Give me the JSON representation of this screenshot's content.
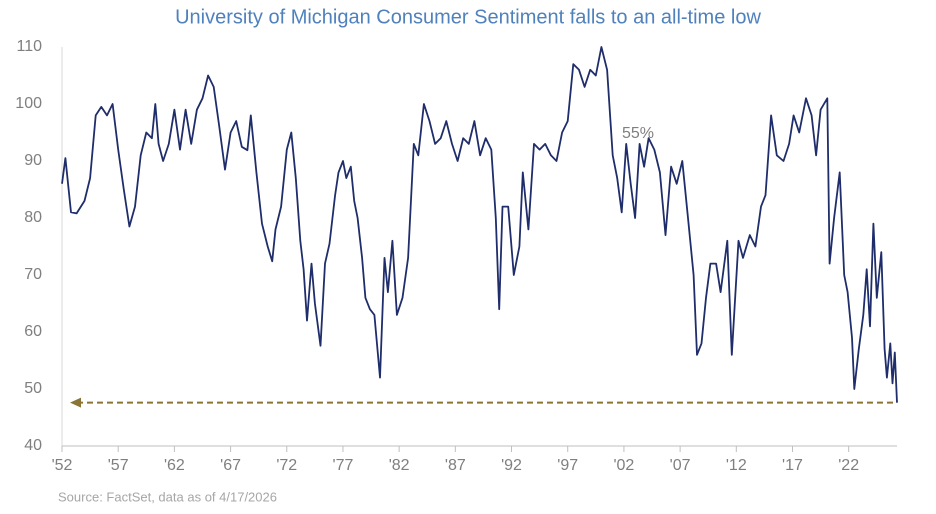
{
  "chart_data": {
    "type": "line",
    "title": "University of Michigan Consumer Sentiment falls to an all-time low",
    "source": "Source: FactSet, data as of 4/17/2026",
    "annotation": "55%",
    "color": "#1f2d6b",
    "reference_line": {
      "value": 47.6,
      "color": "#8b7535"
    },
    "xlim": [
      1952,
      2026.3
    ],
    "ylim": [
      40,
      110
    ],
    "yticks": [
      40,
      50,
      60,
      70,
      80,
      90,
      100,
      110
    ],
    "xticks": [
      {
        "value": 1952,
        "label": "'52"
      },
      {
        "value": 1957,
        "label": "'57"
      },
      {
        "value": 1962,
        "label": "'62"
      },
      {
        "value": 1967,
        "label": "'67"
      },
      {
        "value": 1972,
        "label": "'72"
      },
      {
        "value": 1977,
        "label": "'77"
      },
      {
        "value": 1982,
        "label": "'82"
      },
      {
        "value": 1987,
        "label": "'87"
      },
      {
        "value": 1992,
        "label": "'92"
      },
      {
        "value": 1997,
        "label": "'97"
      },
      {
        "value": 2002,
        "label": "'02"
      },
      {
        "value": 2007,
        "label": "'07"
      },
      {
        "value": 2012,
        "label": "'12"
      },
      {
        "value": 2017,
        "label": "'17"
      },
      {
        "value": 2022,
        "label": "'22"
      }
    ],
    "x": [
      1952,
      1952.3,
      1952.8,
      1953.3,
      1954,
      1954.5,
      1955,
      1955.5,
      1956,
      1956.5,
      1957,
      1957.5,
      1958,
      1958.5,
      1959,
      1959.5,
      1960,
      1960.3,
      1960.6,
      1961,
      1961.5,
      1962,
      1962.5,
      1963,
      1963.5,
      1964,
      1964.5,
      1965,
      1965.5,
      1966,
      1966.5,
      1967,
      1967.5,
      1968,
      1968.5,
      1968.8,
      1969.3,
      1969.8,
      1970.3,
      1970.7,
      1971,
      1971.5,
      1972,
      1972.4,
      1972.8,
      1973.2,
      1973.5,
      1973.8,
      1974.2,
      1974.5,
      1975,
      1975.4,
      1975.8,
      1976.3,
      1976.6,
      1977,
      1977.3,
      1977.7,
      1978,
      1978.3,
      1978.7,
      1979,
      1979.4,
      1979.8,
      1980.3,
      1980.7,
      1981,
      1981.4,
      1981.8,
      1982.3,
      1982.8,
      1983.3,
      1983.7,
      1984.2,
      1984.7,
      1985.2,
      1985.7,
      1986.2,
      1986.7,
      1987.2,
      1987.7,
      1988.2,
      1988.7,
      1989.2,
      1989.7,
      1990.2,
      1990.6,
      1990.9,
      1991.2,
      1991.7,
      1992.2,
      1992.7,
      1993,
      1993.5,
      1994,
      1994.5,
      1995,
      1995.5,
      1996,
      1996.5,
      1997,
      1997.5,
      1998,
      1998.5,
      1999,
      1999.5,
      2000,
      2000.5,
      2001,
      2001.4,
      2001.8,
      2002.2,
      2002.6,
      2003,
      2003.4,
      2003.8,
      2004.2,
      2004.7,
      2005.2,
      2005.7,
      2006.2,
      2006.7,
      2007.2,
      2007.7,
      2008.2,
      2008.5,
      2008.9,
      2009.3,
      2009.7,
      2010.2,
      2010.6,
      2011.2,
      2011.6,
      2012.2,
      2012.6,
      2013.2,
      2013.7,
      2014.2,
      2014.6,
      2015.1,
      2015.6,
      2016.2,
      2016.7,
      2017.1,
      2017.6,
      2018.2,
      2018.7,
      2019.1,
      2019.5,
      2020.1,
      2020.3,
      2020.7,
      2021.2,
      2021.6,
      2021.9,
      2022.3,
      2022.5,
      2022.9,
      2023.3,
      2023.6,
      2023.9,
      2024.2,
      2024.5,
      2024.9,
      2025.2,
      2025.4,
      2025.7,
      2025.9,
      2026.1,
      2026.3
    ],
    "values": [
      86,
      90.5,
      81,
      80.8,
      83,
      87,
      98,
      99.5,
      98,
      100,
      92,
      85,
      78.5,
      82,
      91,
      95,
      94,
      100,
      93,
      90,
      93,
      99,
      92,
      99,
      93,
      99,
      101,
      105,
      103,
      96,
      88.5,
      95,
      97,
      92.5,
      91.9,
      98,
      88,
      79,
      75,
      72.4,
      78,
      82,
      92,
      95,
      87,
      76,
      71,
      62,
      72,
      65,
      57.6,
      72,
      75.5,
      84,
      88,
      90,
      87,
      89,
      83,
      80,
      73,
      66,
      64,
      63,
      52,
      73,
      67,
      76,
      63,
      66,
      73,
      93,
      91,
      100,
      97,
      93,
      94,
      97,
      93,
      90,
      94,
      93,
      97,
      91,
      94,
      92,
      80,
      64,
      82,
      82,
      70,
      75,
      88,
      78,
      93,
      92,
      93,
      91,
      90,
      95,
      97,
      107,
      106,
      103,
      106,
      105,
      110,
      106,
      91,
      87,
      81,
      93,
      86,
      80,
      93,
      89,
      94,
      92,
      88,
      77,
      89,
      86,
      90,
      80,
      70,
      56,
      58,
      66,
      72,
      72,
      67,
      76,
      56,
      76,
      73,
      77,
      75,
      82,
      84,
      98,
      91,
      90,
      93,
      98,
      95,
      101,
      98,
      91,
      99,
      101,
      72,
      80,
      88,
      70,
      67,
      59,
      50,
      57,
      63,
      71,
      61,
      79,
      66,
      74,
      57,
      52,
      58,
      51,
      56.4,
      47.6
    ]
  }
}
